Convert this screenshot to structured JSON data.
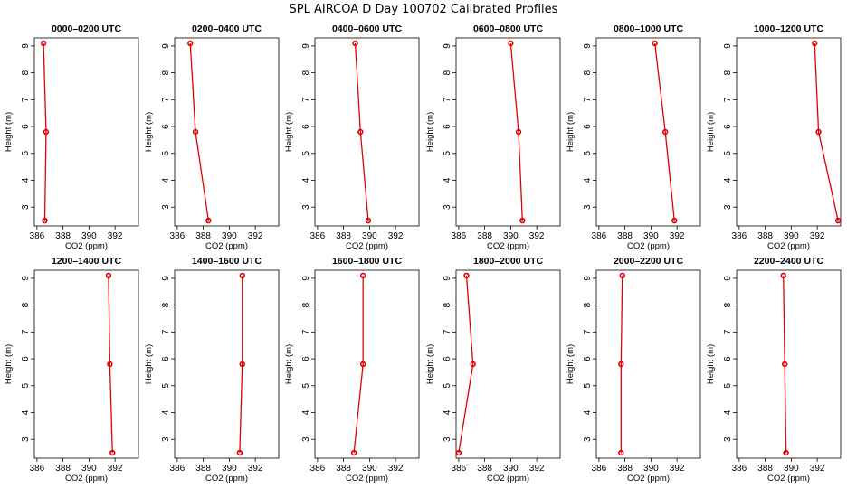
{
  "chart_data": {
    "title": "SPL AIRCOA D  Day 100702  Calibrated Profiles",
    "type": "line",
    "xlabel": "CO2 (ppm)",
    "ylabel": "Height (m)",
    "xlim": [
      385.8,
      393.8
    ],
    "ylim": [
      2.3,
      9.3
    ],
    "xticks": [
      386,
      388,
      390,
      392
    ],
    "yticks": [
      3,
      4,
      5,
      6,
      7,
      8,
      9
    ],
    "heights": [
      9.1,
      5.8,
      2.5
    ],
    "panels": [
      {
        "title": "0000–0200 UTC",
        "co2": [
          386.5,
          386.7,
          386.6
        ]
      },
      {
        "title": "0200–0400 UTC",
        "co2": [
          387.0,
          387.4,
          388.4
        ]
      },
      {
        "title": "0400–0600 UTC",
        "co2": [
          388.9,
          389.3,
          389.9
        ]
      },
      {
        "title": "0600–0800 UTC",
        "co2": [
          390.0,
          390.6,
          390.9
        ]
      },
      {
        "title": "0800–1000 UTC",
        "co2": [
          390.3,
          391.1,
          391.8
        ]
      },
      {
        "title": "1000–1200 UTC",
        "co2": [
          391.8,
          392.1,
          393.6
        ]
      },
      {
        "title": "1200–1400 UTC",
        "co2": [
          391.5,
          391.6,
          391.8
        ]
      },
      {
        "title": "1400–1600 UTC",
        "co2": [
          391.0,
          391.0,
          390.8
        ]
      },
      {
        "title": "1600–1800 UTC",
        "co2": [
          389.5,
          389.5,
          388.8
        ]
      },
      {
        "title": "1800–2000 UTC",
        "co2": [
          386.6,
          387.1,
          386.0
        ]
      },
      {
        "title": "2000–2200 UTC",
        "co2": [
          387.8,
          387.7,
          387.7
        ]
      },
      {
        "title": "2200–2400 UTC",
        "co2": [
          389.4,
          389.5,
          389.6
        ]
      }
    ]
  }
}
